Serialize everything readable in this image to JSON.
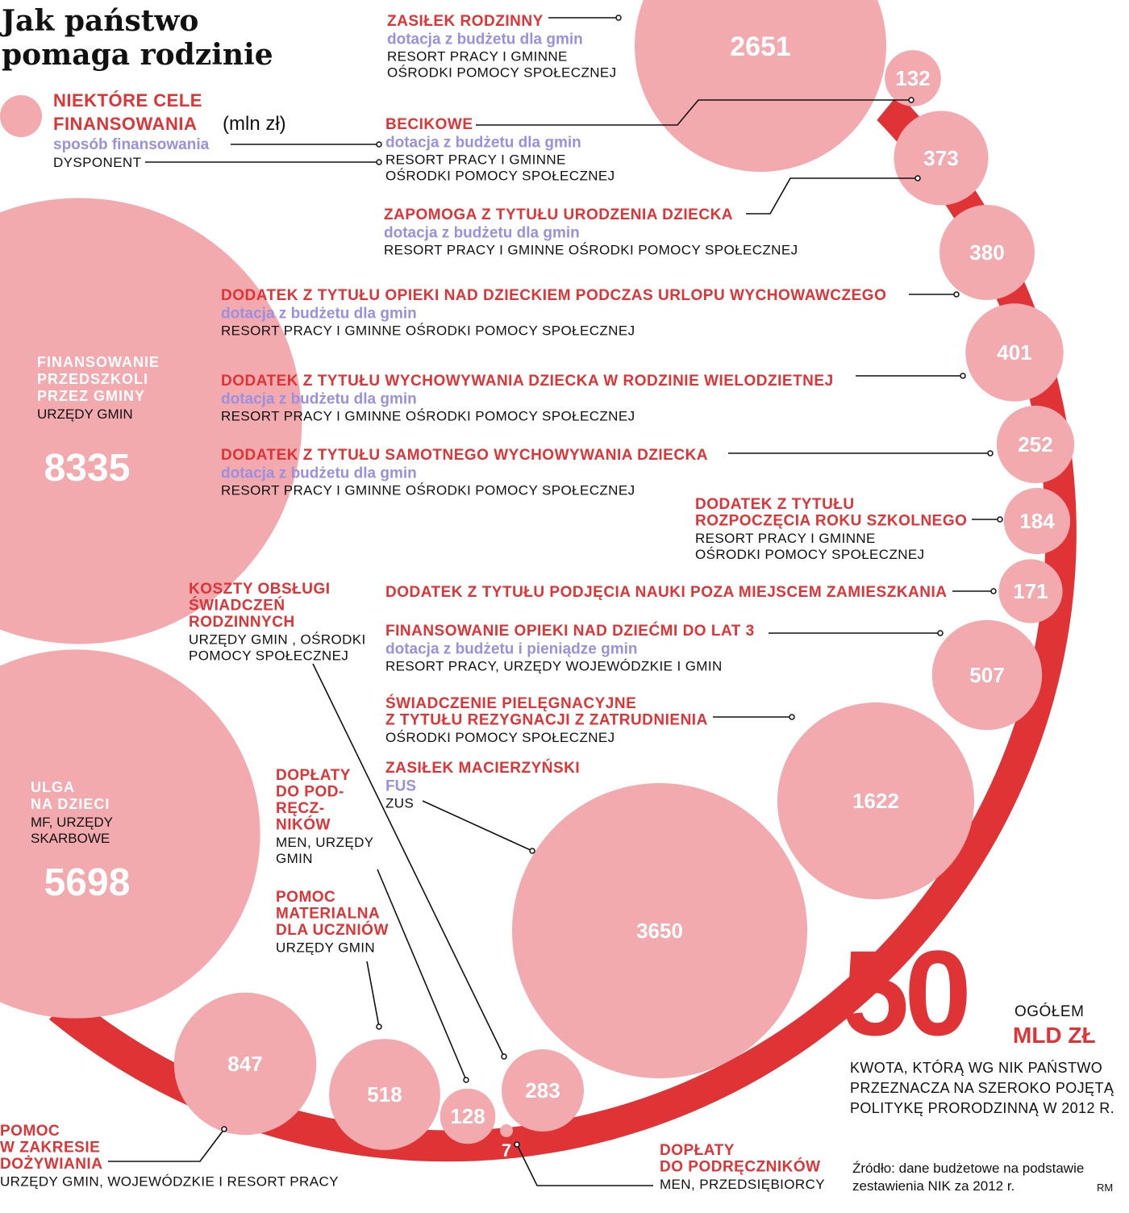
{
  "title": [
    "Jak państwo",
    "pomaga rodzinie"
  ],
  "colors": {
    "bubble": "#f2aaaf",
    "ring": "#e03335",
    "label": "#e03335",
    "method": "#9b8fe0",
    "text": "#111111"
  },
  "legend": {
    "label_lines": [
      "NIEKTÓRE CELE",
      "FINANSOWANIA"
    ],
    "unit": "(mln zł)",
    "method_label": "sposób finansowania",
    "disposer_label": "DYSPONENT"
  },
  "total": {
    "value": "50",
    "label": "OGÓŁEM",
    "unit": "MLD ZŁ",
    "description": [
      "KWOTA, KTÓRĄ WG NIK PAŃSTWO",
      "PRZEZNACZA NA SZEROKO POJĘTĄ",
      "POLITYKĘ PRORODZINNĄ W 2012 R."
    ]
  },
  "source": [
    "Źródło: dane budżetowe na podstawie",
    "zestawienia NIK za 2012 r."
  ],
  "author": "RM",
  "chart_data": {
    "type": "bubble",
    "title": "Jak państwo pomaga rodzinie",
    "unit": "mln zł",
    "items": [
      {
        "name": [
          "ZASIŁEK RODZINNY"
        ],
        "method": [
          "dotacja z budżetu dla gmin"
        ],
        "disposer": [
          "RESORT PRACY I GMINNE",
          "OŚRODKI POMOCY SPOŁECZNEJ"
        ],
        "value": 2651
      },
      {
        "name": [
          "BECIKOWE"
        ],
        "method": [
          "dotacja z budżetu dla gmin"
        ],
        "disposer": [
          "RESORT PRACY I GMINNE",
          "OŚRODKI POMOCY SPOŁECZNEJ"
        ],
        "value": 132
      },
      {
        "name": [
          "ZAPOMOGA Z TYTUŁU URODZENIA DZIECKA"
        ],
        "method": [
          "dotacja z budżetu dla gmin"
        ],
        "disposer": [
          "RESORT PRACY I GMINNE OŚRODKI POMOCY SPOŁECZNEJ"
        ],
        "value": 373
      },
      {
        "name": [
          "DODATEK Z TYTUŁU OPIEKI NAD DZIECKIEM PODCZAS URLOPU WYCHOWAWCZEGO"
        ],
        "method": [
          "dotacja z budżetu dla gmin"
        ],
        "disposer": [
          "RESORT PRACY I GMINNE OŚRODKI POMOCY SPOŁECZNEJ"
        ],
        "value": 380
      },
      {
        "name": [
          "DODATEK Z TYTUŁU WYCHOWYWANIA DZIECKA W RODZINIE WIELODZIETNEJ"
        ],
        "method": [
          "dotacja z budżetu dla gmin"
        ],
        "disposer": [
          "RESORT PRACY I GMINNE OŚRODKI POMOCY SPOŁECZNEJ"
        ],
        "value": 401
      },
      {
        "name": [
          "DODATEK Z TYTUŁU SAMOTNEGO WYCHOWYWANIA DZIECKA"
        ],
        "method": [
          "dotacja z budżetu dla gmin"
        ],
        "disposer": [
          "RESORT PRACY I GMINNE OŚRODKI POMOCY SPOŁECZNEJ"
        ],
        "value": 252
      },
      {
        "name": [
          "DODATEK Z TYTUŁU",
          "ROZPOCZĘCIA ROKU SZKOLNEGO"
        ],
        "method": [],
        "disposer": [
          "RESORT PRACY I GMINNE",
          "OŚRODKI POMOCY SPOŁECZNEJ"
        ],
        "value": 184
      },
      {
        "name": [
          "DODATEK Z TYTUŁU PODJĘCIA NAUKI POZA MIEJSCEM ZAMIESZKANIA"
        ],
        "method": [],
        "disposer": [],
        "value": 171
      },
      {
        "name": [
          "FINANSOWANIE OPIEKI NAD DZIEĆMI DO LAT 3"
        ],
        "method": [
          "dotacja z budżetu i pieniądze  gmin"
        ],
        "disposer": [
          "RESORT PRACY, URZĘDY WOJEWÓDZKIE I GMIN"
        ],
        "value": 507
      },
      {
        "name": [
          "ŚWIADCZENIE PIELĘGNACYJNE",
          "Z TYTUŁU REZYGNACJI Z ZATRUDNIENIA"
        ],
        "method": [],
        "disposer": [
          "OŚRODKI POMOCY SPOŁECZNEJ"
        ],
        "value": 1622
      },
      {
        "name": [
          "ZASIŁEK MACIERZYŃSKI"
        ],
        "method": [
          "FUS"
        ],
        "disposer": [
          "ZUS"
        ],
        "value": 3650
      },
      {
        "name": [
          "KOSZTY OBSŁUGI",
          "ŚWIADCZEŃ",
          "RODZINNYCH"
        ],
        "method": [],
        "disposer": [
          "URZĘDY GMIN , OŚRODKI",
          "POMOCY SPOŁECZNEJ"
        ],
        "value": 283
      },
      {
        "name": [
          "DOPŁATY",
          "DO POD-",
          "RĘCZ-",
          "NIKÓW"
        ],
        "method": [],
        "disposer": [
          "MEN, URZĘDY",
          "GMIN"
        ],
        "value": 128
      },
      {
        "name": [
          "POMOC",
          "MATERIALNA",
          "DLA UCZNIÓW"
        ],
        "method": [],
        "disposer": [
          "URZĘDY GMIN"
        ],
        "value": 518
      },
      {
        "name": [
          "DOPŁATY",
          "DO PODRĘCZNIKÓW"
        ],
        "method": [],
        "disposer": [
          "MEN, PRZEDSIĘBIORCY"
        ],
        "value": 7
      },
      {
        "name": [
          "POMOC",
          "W ZAKRESIE",
          "DOŻYWIANIA"
        ],
        "method": [],
        "disposer": [
          "URZĘDY GMIN, WOJEWÓDZKIE I RESORT PRACY"
        ],
        "value": 847
      },
      {
        "name": [
          "FINANSOWANIE",
          "PRZEDSZKOLI",
          "PRZEZ GMINY"
        ],
        "method": [],
        "disposer": [
          "URZĘDY GMIN"
        ],
        "value": 8335
      },
      {
        "name": [
          "ULGA",
          "NA DZIECI"
        ],
        "method": [],
        "disposer": [
          "MF, URZĘDY",
          "SKARBOWE"
        ],
        "value": 5698
      }
    ]
  }
}
